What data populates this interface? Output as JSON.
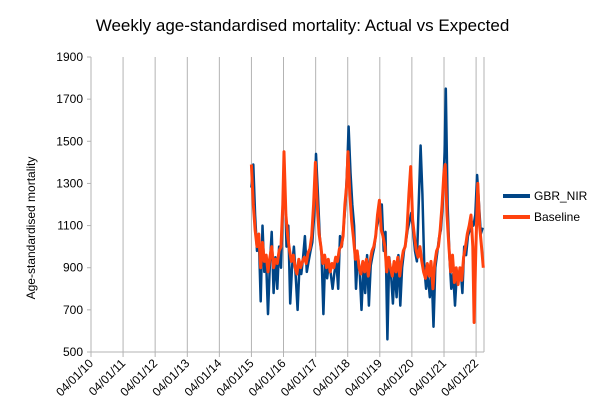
{
  "chart_data": {
    "type": "line",
    "title": "Weekly age-standardised mortality: Actual vs Expected",
    "xlabel": "",
    "ylabel": "Age-standardised mortality",
    "ylim": [
      500,
      1900
    ],
    "yticks": [
      500,
      700,
      900,
      1100,
      1300,
      1500,
      1700,
      1900
    ],
    "xlim": [
      "2010-01-04",
      "2022-04-04"
    ],
    "xtick_labels": [
      "04/01/10",
      "04/01/11",
      "04/01/12",
      "04/01/13",
      "04/01/14",
      "04/01/15",
      "04/01/16",
      "04/01/17",
      "04/01/18",
      "04/01/19",
      "04/01/20",
      "04/01/21",
      "04/01/22"
    ],
    "grid": "vertical",
    "legend_position": "right",
    "series": [
      {
        "name": "GBR_NIR",
        "color": "#004586",
        "points": [
          [
            "2015-01-04",
            1280
          ],
          [
            "2015-01-25",
            1390
          ],
          [
            "2015-02-15",
            1150
          ],
          [
            "2015-03-08",
            980
          ],
          [
            "2015-03-29",
            1050
          ],
          [
            "2015-04-19",
            740
          ],
          [
            "2015-05-10",
            1100
          ],
          [
            "2015-05-31",
            880
          ],
          [
            "2015-06-21",
            920
          ],
          [
            "2015-07-12",
            680
          ],
          [
            "2015-08-02",
            920
          ],
          [
            "2015-08-23",
            1070
          ],
          [
            "2015-09-13",
            780
          ],
          [
            "2015-10-04",
            950
          ],
          [
            "2015-10-25",
            800
          ],
          [
            "2015-11-15",
            1000
          ],
          [
            "2015-12-06",
            900
          ],
          [
            "2015-12-27",
            1180
          ],
          [
            "2016-01-17",
            1350
          ],
          [
            "2016-02-07",
            1000
          ],
          [
            "2016-02-28",
            1100
          ],
          [
            "2016-03-20",
            730
          ],
          [
            "2016-04-10",
            900
          ],
          [
            "2016-05-01",
            1000
          ],
          [
            "2016-05-22",
            860
          ],
          [
            "2016-06-12",
            700
          ],
          [
            "2016-07-03",
            900
          ],
          [
            "2016-07-24",
            870
          ],
          [
            "2016-08-14",
            950
          ],
          [
            "2016-09-04",
            1050
          ],
          [
            "2016-09-25",
            880
          ],
          [
            "2016-10-16",
            930
          ],
          [
            "2016-11-06",
            980
          ],
          [
            "2016-11-27",
            1020
          ],
          [
            "2016-12-18",
            1150
          ],
          [
            "2017-01-08",
            1440
          ],
          [
            "2017-01-29",
            1250
          ],
          [
            "2017-02-19",
            1050
          ],
          [
            "2017-03-12",
            970
          ],
          [
            "2017-04-02",
            680
          ],
          [
            "2017-04-23",
            950
          ],
          [
            "2017-05-14",
            850
          ],
          [
            "2017-06-04",
            920
          ],
          [
            "2017-06-25",
            870
          ],
          [
            "2017-07-16",
            800
          ],
          [
            "2017-08-06",
            880
          ],
          [
            "2017-08-27",
            930
          ],
          [
            "2017-09-17",
            800
          ],
          [
            "2017-10-08",
            1050
          ],
          [
            "2017-10-29",
            1000
          ],
          [
            "2017-11-19",
            1100
          ],
          [
            "2017-12-10",
            1200
          ],
          [
            "2017-12-31",
            1400
          ],
          [
            "2018-01-14",
            1570
          ],
          [
            "2018-02-04",
            1350
          ],
          [
            "2018-02-25",
            1200
          ],
          [
            "2018-03-18",
            1100
          ],
          [
            "2018-04-08",
            800
          ],
          [
            "2018-04-29",
            960
          ],
          [
            "2018-05-20",
            880
          ],
          [
            "2018-06-10",
            700
          ],
          [
            "2018-07-01",
            900
          ],
          [
            "2018-07-22",
            780
          ],
          [
            "2018-08-12",
            960
          ],
          [
            "2018-09-02",
            720
          ],
          [
            "2018-09-23",
            910
          ],
          [
            "2018-10-14",
            960
          ],
          [
            "2018-11-04",
            1000
          ],
          [
            "2018-11-25",
            1080
          ],
          [
            "2018-12-16",
            1120
          ],
          [
            "2019-01-06",
            1150
          ],
          [
            "2019-01-27",
            1200
          ],
          [
            "2019-02-17",
            980
          ],
          [
            "2019-03-10",
            1070
          ],
          [
            "2019-03-31",
            560
          ],
          [
            "2019-04-21",
            950
          ],
          [
            "2019-05-12",
            870
          ],
          [
            "2019-06-02",
            730
          ],
          [
            "2019-06-23",
            900
          ],
          [
            "2019-07-14",
            760
          ],
          [
            "2019-08-04",
            960
          ],
          [
            "2019-08-25",
            720
          ],
          [
            "2019-09-15",
            900
          ],
          [
            "2019-10-06",
            980
          ],
          [
            "2019-10-27",
            1020
          ],
          [
            "2019-11-17",
            1080
          ],
          [
            "2019-12-08",
            1120
          ],
          [
            "2019-12-29",
            1160
          ],
          [
            "2020-01-19",
            1070
          ],
          [
            "2020-02-09",
            980
          ],
          [
            "2020-03-01",
            930
          ],
          [
            "2020-03-22",
            1200
          ],
          [
            "2020-04-12",
            1480
          ],
          [
            "2020-05-03",
            1250
          ],
          [
            "2020-05-24",
            900
          ],
          [
            "2020-06-14",
            800
          ],
          [
            "2020-07-05",
            870
          ],
          [
            "2020-07-26",
            760
          ],
          [
            "2020-08-16",
            880
          ],
          [
            "2020-09-06",
            620
          ],
          [
            "2020-09-27",
            900
          ],
          [
            "2020-10-18",
            970
          ],
          [
            "2020-11-08",
            1040
          ],
          [
            "2020-11-29",
            1080
          ],
          [
            "2020-12-20",
            1200
          ],
          [
            "2021-01-10",
            1450
          ],
          [
            "2021-01-24",
            1750
          ],
          [
            "2021-02-14",
            1200
          ],
          [
            "2021-03-07",
            950
          ],
          [
            "2021-03-28",
            800
          ],
          [
            "2021-04-18",
            870
          ],
          [
            "2021-05-09",
            720
          ],
          [
            "2021-05-30",
            880
          ],
          [
            "2021-06-20",
            840
          ],
          [
            "2021-07-11",
            900
          ],
          [
            "2021-08-01",
            780
          ],
          [
            "2021-08-22",
            1000
          ],
          [
            "2021-09-12",
            960
          ],
          [
            "2021-10-03",
            1050
          ],
          [
            "2021-10-24",
            1080
          ],
          [
            "2021-11-14",
            1120
          ],
          [
            "2021-12-05",
            1100
          ],
          [
            "2021-12-26",
            1150
          ],
          [
            "2022-01-16",
            1340
          ],
          [
            "2022-02-06",
            1200
          ],
          [
            "2022-02-27",
            1060
          ],
          [
            "2022-03-20",
            1090
          ]
        ]
      },
      {
        "name": "Baseline",
        "color": "#ff420e",
        "points": [
          [
            "2015-01-04",
            1390
          ],
          [
            "2015-01-25",
            1200
          ],
          [
            "2015-02-15",
            1080
          ],
          [
            "2015-03-08",
            1000
          ],
          [
            "2015-03-29",
            1060
          ],
          [
            "2015-04-19",
            900
          ],
          [
            "2015-05-10",
            1020
          ],
          [
            "2015-05-31",
            930
          ],
          [
            "2015-06-21",
            960
          ],
          [
            "2015-07-12",
            880
          ],
          [
            "2015-08-02",
            950
          ],
          [
            "2015-08-23",
            1000
          ],
          [
            "2015-09-13",
            900
          ],
          [
            "2015-10-04",
            940
          ],
          [
            "2015-10-25",
            920
          ],
          [
            "2015-11-15",
            980
          ],
          [
            "2015-12-06",
            1000
          ],
          [
            "2015-12-27",
            1200
          ],
          [
            "2016-01-10",
            1450
          ],
          [
            "2016-01-31",
            1150
          ],
          [
            "2016-02-21",
            1050
          ],
          [
            "2016-03-13",
            980
          ],
          [
            "2016-04-03",
            930
          ],
          [
            "2016-04-24",
            960
          ],
          [
            "2016-05-15",
            900
          ],
          [
            "2016-06-05",
            870
          ],
          [
            "2016-06-26",
            940
          ],
          [
            "2016-07-17",
            900
          ],
          [
            "2016-08-07",
            930
          ],
          [
            "2016-08-28",
            950
          ],
          [
            "2016-09-18",
            920
          ],
          [
            "2016-10-09",
            970
          ],
          [
            "2016-10-30",
            990
          ],
          [
            "2016-11-20",
            1050
          ],
          [
            "2016-12-11",
            1200
          ],
          [
            "2017-01-01",
            1400
          ],
          [
            "2017-01-22",
            1200
          ],
          [
            "2017-02-12",
            1060
          ],
          [
            "2017-03-05",
            1000
          ],
          [
            "2017-03-26",
            920
          ],
          [
            "2017-04-16",
            960
          ],
          [
            "2017-05-07",
            900
          ],
          [
            "2017-05-28",
            940
          ],
          [
            "2017-06-18",
            880
          ],
          [
            "2017-07-09",
            920
          ],
          [
            "2017-07-30",
            900
          ],
          [
            "2017-08-20",
            950
          ],
          [
            "2017-09-10",
            930
          ],
          [
            "2017-10-01",
            990
          ],
          [
            "2017-10-22",
            1000
          ],
          [
            "2017-11-12",
            1050
          ],
          [
            "2017-12-03",
            1200
          ],
          [
            "2017-12-24",
            1300
          ],
          [
            "2018-01-07",
            1450
          ],
          [
            "2018-01-28",
            1250
          ],
          [
            "2018-02-18",
            1120
          ],
          [
            "2018-03-11",
            1040
          ],
          [
            "2018-04-01",
            940
          ],
          [
            "2018-04-22",
            980
          ],
          [
            "2018-05-13",
            900
          ],
          [
            "2018-06-03",
            870
          ],
          [
            "2018-06-24",
            930
          ],
          [
            "2018-07-15",
            880
          ],
          [
            "2018-08-05",
            940
          ],
          [
            "2018-08-26",
            860
          ],
          [
            "2018-09-16",
            930
          ],
          [
            "2018-10-07",
            980
          ],
          [
            "2018-10-28",
            1000
          ],
          [
            "2018-11-18",
            1050
          ],
          [
            "2018-12-09",
            1150
          ],
          [
            "2018-12-30",
            1220
          ],
          [
            "2019-01-20",
            1080
          ],
          [
            "2019-02-10",
            1050
          ],
          [
            "2019-03-03",
            1000
          ],
          [
            "2019-03-24",
            880
          ],
          [
            "2019-04-14",
            950
          ],
          [
            "2019-05-05",
            900
          ],
          [
            "2019-05-26",
            860
          ],
          [
            "2019-06-16",
            930
          ],
          [
            "2019-07-07",
            880
          ],
          [
            "2019-07-28",
            950
          ],
          [
            "2019-08-18",
            860
          ],
          [
            "2019-09-08",
            930
          ],
          [
            "2019-09-29",
            980
          ],
          [
            "2019-10-20",
            1000
          ],
          [
            "2019-11-10",
            1080
          ],
          [
            "2019-12-01",
            1250
          ],
          [
            "2019-12-22",
            1380
          ],
          [
            "2020-01-12",
            1130
          ],
          [
            "2020-02-02",
            1050
          ],
          [
            "2020-02-23",
            980
          ],
          [
            "2020-03-15",
            950
          ],
          [
            "2020-04-05",
            1000
          ],
          [
            "2020-04-26",
            930
          ],
          [
            "2020-05-17",
            880
          ],
          [
            "2020-06-07",
            850
          ],
          [
            "2020-06-28",
            920
          ],
          [
            "2020-07-19",
            860
          ],
          [
            "2020-08-09",
            930
          ],
          [
            "2020-08-30",
            800
          ],
          [
            "2020-09-20",
            920
          ],
          [
            "2020-10-11",
            980
          ],
          [
            "2020-11-01",
            1000
          ],
          [
            "2020-11-22",
            1080
          ],
          [
            "2020-12-13",
            1200
          ],
          [
            "2021-01-03",
            1350
          ],
          [
            "2021-01-17",
            1390
          ],
          [
            "2021-02-07",
            1150
          ],
          [
            "2021-02-28",
            1000
          ],
          [
            "2021-03-21",
            880
          ],
          [
            "2021-04-11",
            960
          ],
          [
            "2021-05-02",
            830
          ],
          [
            "2021-05-23",
            900
          ],
          [
            "2021-06-13",
            820
          ],
          [
            "2021-07-04",
            900
          ],
          [
            "2021-07-25",
            840
          ],
          [
            "2021-08-15",
            950
          ],
          [
            "2021-09-05",
            1000
          ],
          [
            "2021-09-26",
            1060
          ],
          [
            "2021-10-17",
            1100
          ],
          [
            "2021-11-07",
            1150
          ],
          [
            "2021-11-28",
            1000
          ],
          [
            "2021-12-12",
            640
          ],
          [
            "2022-01-02",
            1000
          ],
          [
            "2022-01-23",
            1300
          ],
          [
            "2022-02-13",
            1100
          ],
          [
            "2022-03-06",
            1000
          ],
          [
            "2022-03-27",
            900
          ]
        ]
      }
    ]
  }
}
